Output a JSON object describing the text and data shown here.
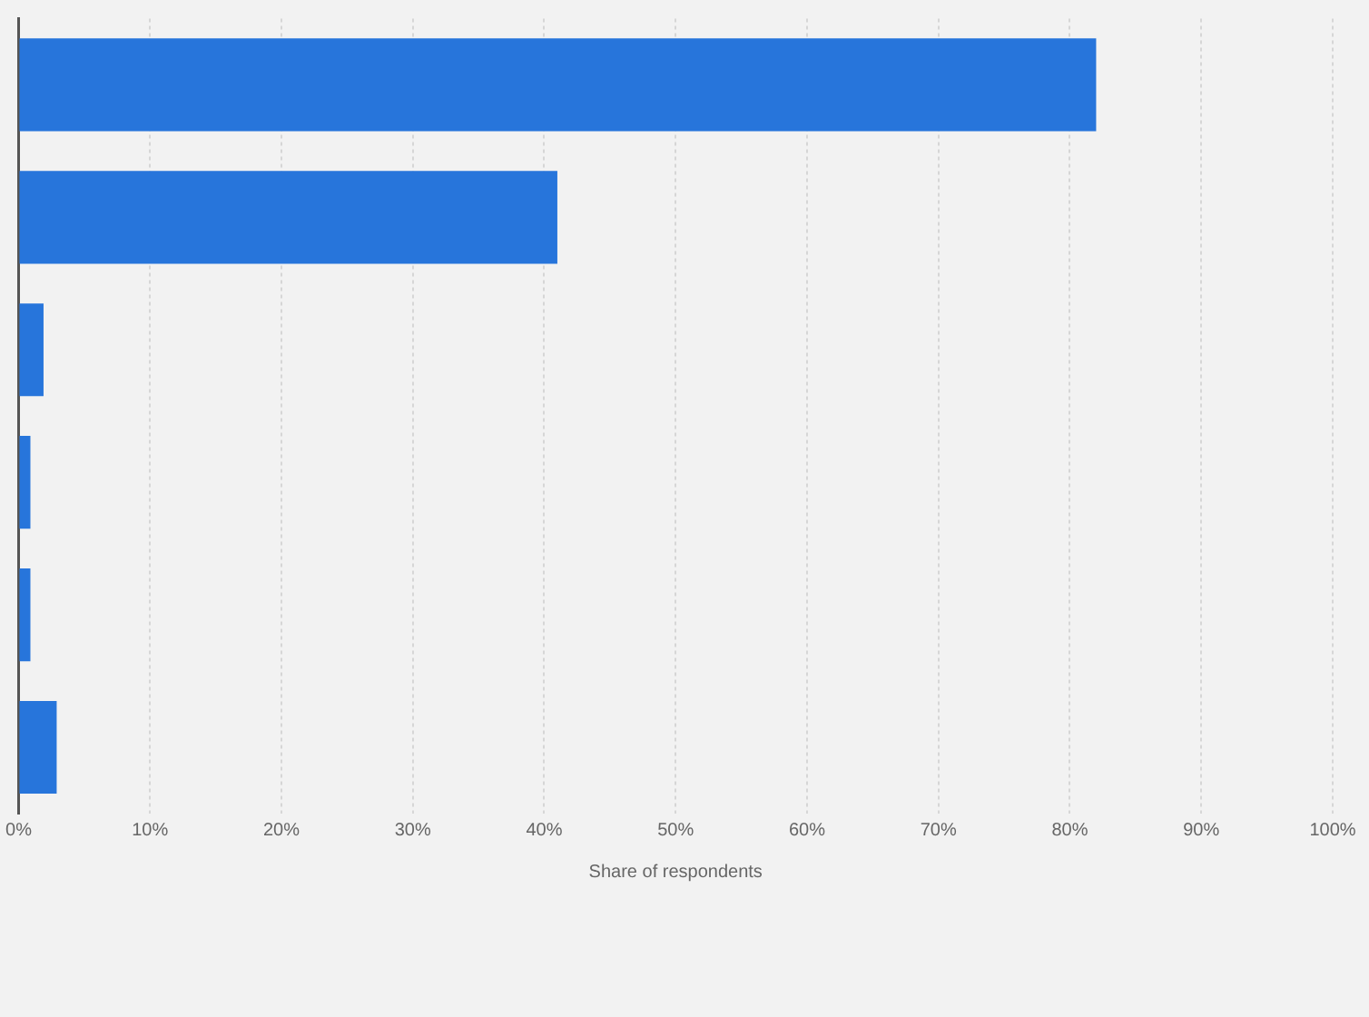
{
  "chart_data": {
    "type": "bar",
    "orientation": "horizontal",
    "xlabel": "Share of respondents",
    "categories": [
      null,
      null,
      null,
      null,
      null,
      null
    ],
    "values": [
      82,
      41,
      1.9,
      0.9,
      0.9,
      2.9
    ],
    "color": "#2775db",
    "xlim": [
      0,
      100
    ],
    "xticks": [
      {
        "value": 0,
        "label": "0%"
      },
      {
        "value": 10,
        "label": "10%"
      },
      {
        "value": 20,
        "label": "20%"
      },
      {
        "value": 30,
        "label": "30%"
      },
      {
        "value": 40,
        "label": "40%"
      },
      {
        "value": 50,
        "label": "50%"
      },
      {
        "value": 60,
        "label": "60%"
      },
      {
        "value": 70,
        "label": "70%"
      },
      {
        "value": 80,
        "label": "80%"
      },
      {
        "value": 90,
        "label": "90%"
      },
      {
        "value": 100,
        "label": "100%"
      }
    ],
    "grid": "x",
    "legend": false
  }
}
